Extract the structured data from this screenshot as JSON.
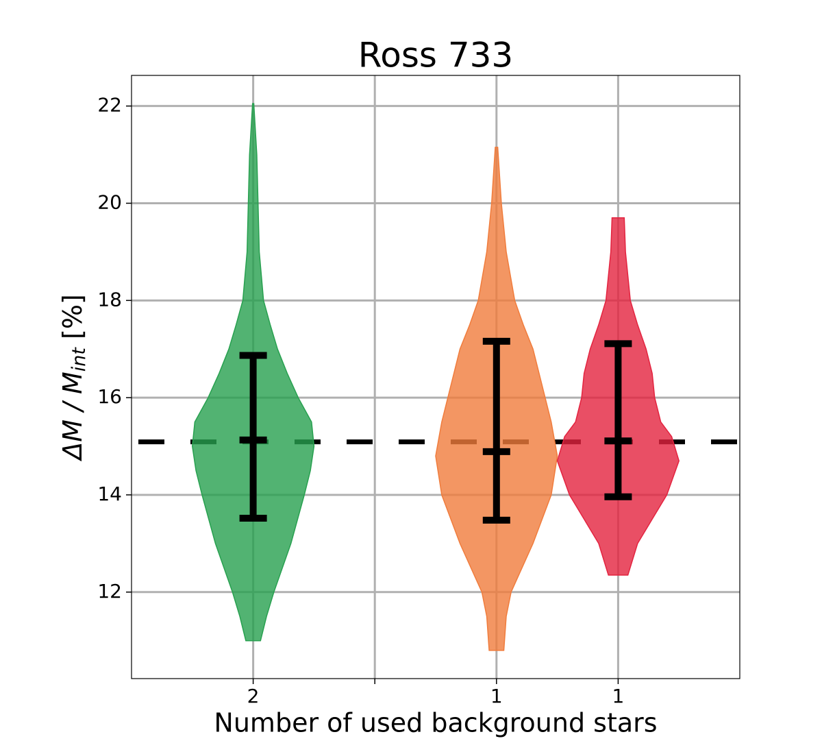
{
  "chart_data": {
    "type": "violin",
    "title": "Ross 733",
    "xlabel": "Number of used background stars",
    "ylabel": {
      "main": "ΔM / M",
      "sub": "int",
      "unit": " [%]"
    },
    "categories": [
      "2",
      null,
      "1",
      "1"
    ],
    "ylim": [
      10.22,
      22.63
    ],
    "yticks": [
      12,
      14,
      16,
      18,
      20,
      22
    ],
    "grid": true,
    "hline": 15.09,
    "violins": [
      {
        "color": "#27a04f",
        "y": [
          11.0,
          11.5,
          12.0,
          13.0,
          14.0,
          14.5,
          15.0,
          15.5,
          16.0,
          16.5,
          17.0,
          17.5,
          18.0,
          19.0,
          20.0,
          21.0,
          22.05
        ],
        "density": [
          0.06,
          0.11,
          0.17,
          0.31,
          0.42,
          0.47,
          0.5,
          0.48,
          0.37,
          0.28,
          0.2,
          0.14,
          0.085,
          0.05,
          0.04,
          0.03,
          0.005
        ],
        "median": 15.13,
        "lower": 13.52,
        "upper": 16.87
      },
      null,
      {
        "color": "#f07c3c",
        "y": [
          10.8,
          11.5,
          12.0,
          13.0,
          14.0,
          14.8,
          15.5,
          16.0,
          17.0,
          17.5,
          18.0,
          19.0,
          20.0,
          21.15
        ],
        "density": [
          0.06,
          0.08,
          0.12,
          0.3,
          0.45,
          0.5,
          0.45,
          0.4,
          0.3,
          0.22,
          0.15,
          0.08,
          0.04,
          0.01
        ],
        "median": 14.89,
        "lower": 13.48,
        "upper": 17.16
      },
      {
        "color": "#e3233f",
        "y": [
          12.35,
          13.0,
          13.5,
          14.0,
          14.7,
          15.2,
          15.5,
          16.0,
          16.5,
          17.0,
          17.5,
          18.0,
          19.0,
          19.7
        ],
        "density": [
          0.08,
          0.16,
          0.28,
          0.4,
          0.5,
          0.44,
          0.35,
          0.3,
          0.28,
          0.23,
          0.16,
          0.1,
          0.06,
          0.05
        ],
        "median": 15.11,
        "lower": 13.96,
        "upper": 17.11
      }
    ]
  }
}
